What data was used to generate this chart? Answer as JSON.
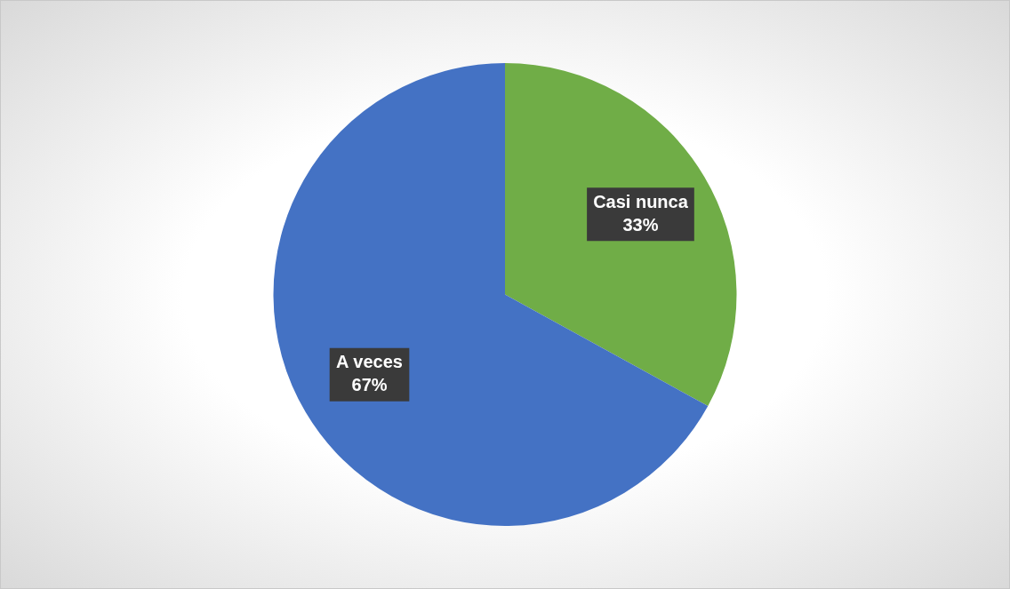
{
  "chart_data": {
    "type": "pie",
    "categories": [
      "Casi nunca",
      "A veces"
    ],
    "values": [
      33,
      67
    ],
    "colors": [
      "#70ad47",
      "#4472c4"
    ],
    "value_labels": [
      "33%",
      "67%"
    ],
    "legend": false
  }
}
